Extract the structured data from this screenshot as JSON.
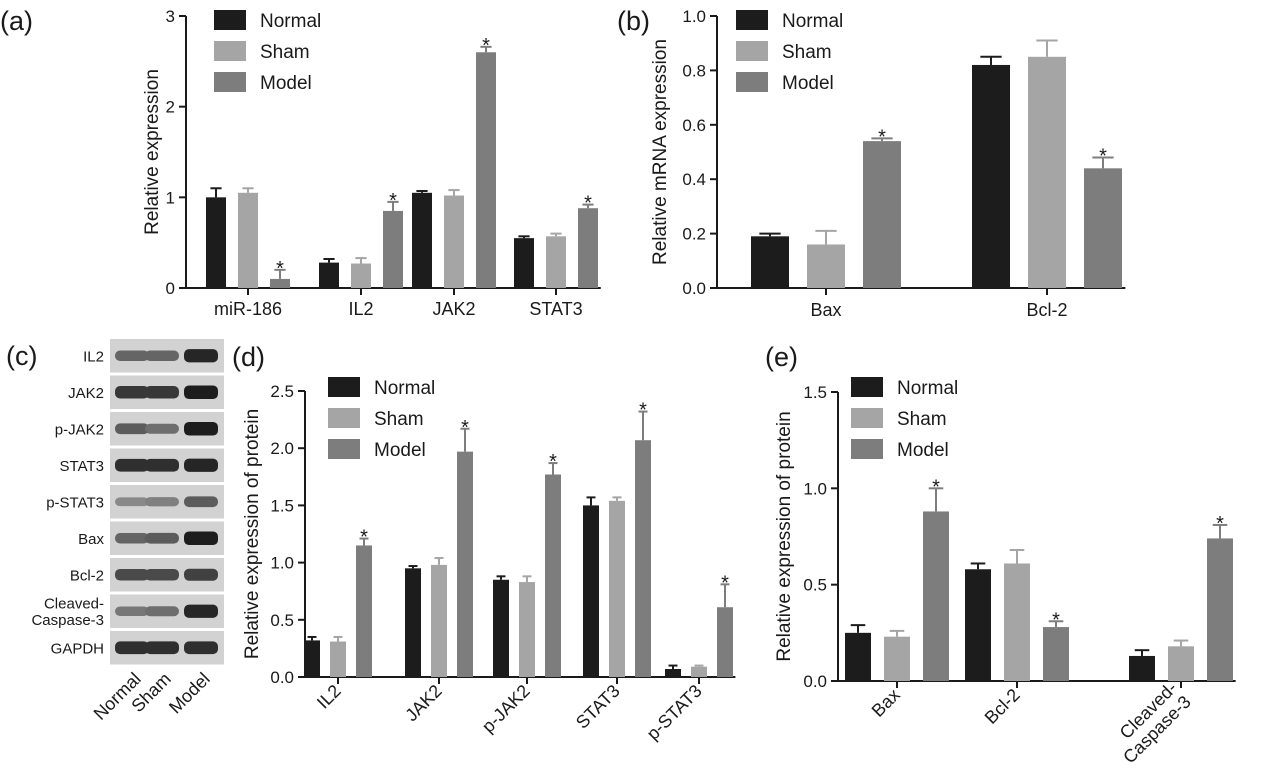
{
  "colors": {
    "Normal": "#1c1c1c",
    "Sham": "#a5a5a5",
    "Model": "#7d7d7d"
  },
  "chart_data": [
    {
      "panel": "(a)",
      "type": "bar",
      "ylabel": "Relative expression",
      "ylim": [
        0,
        3
      ],
      "yticks": [
        "0",
        "1",
        "2",
        "3"
      ],
      "categories": [
        "miR-186",
        "IL2",
        "JAK2",
        "STAT3"
      ],
      "legend": [
        "Normal",
        "Sham",
        "Model"
      ],
      "legend_position": "top-left",
      "series": [
        {
          "name": "Normal",
          "values": [
            1.0,
            0.28,
            1.05,
            0.55
          ],
          "errors": [
            0.1,
            0.04,
            0.02,
            0.02
          ]
        },
        {
          "name": "Sham",
          "values": [
            1.05,
            0.27,
            1.02,
            0.57
          ],
          "errors": [
            0.05,
            0.06,
            0.06,
            0.03
          ]
        },
        {
          "name": "Model",
          "values": [
            0.1,
            0.85,
            2.6,
            0.88
          ],
          "errors": [
            0.1,
            0.1,
            0.06,
            0.04
          ]
        }
      ],
      "significance": [
        [
          false,
          false,
          true
        ],
        [
          false,
          false,
          true
        ],
        [
          false,
          false,
          true
        ],
        [
          false,
          false,
          true
        ]
      ],
      "star": "*"
    },
    {
      "panel": "(b)",
      "type": "bar",
      "ylabel": "Relative mRNA expression",
      "ylim": [
        0,
        1.0
      ],
      "yticks": [
        "0.0",
        "0.2",
        "0.4",
        "0.6",
        "0.8",
        "1.0"
      ],
      "categories": [
        "Bax",
        "Bcl-2"
      ],
      "legend": [
        "Normal",
        "Sham",
        "Model"
      ],
      "legend_position": "top-left",
      "series": [
        {
          "name": "Normal",
          "values": [
            0.19,
            0.82
          ],
          "errors": [
            0.01,
            0.03
          ]
        },
        {
          "name": "Sham",
          "values": [
            0.16,
            0.85
          ],
          "errors": [
            0.05,
            0.06
          ]
        },
        {
          "name": "Model",
          "values": [
            0.54,
            0.44
          ],
          "errors": [
            0.01,
            0.04
          ]
        }
      ],
      "significance": [
        [
          false,
          false,
          true
        ],
        [
          false,
          false,
          true
        ]
      ],
      "star": "*"
    },
    {
      "panel": "(d)",
      "type": "bar",
      "ylabel": "Relative expression of protein",
      "ylim": [
        0,
        2.5
      ],
      "yticks": [
        "0.0",
        "0.5",
        "1.0",
        "1.5",
        "2.0",
        "2.5"
      ],
      "categories": [
        "IL2",
        "JAK2",
        "p-JAK2",
        "STAT3",
        "p-STAT3"
      ],
      "legend": [
        "Normal",
        "Sham",
        "Model"
      ],
      "legend_position": "top-left",
      "series": [
        {
          "name": "Normal",
          "values": [
            0.32,
            0.95,
            0.85,
            1.5,
            0.07
          ],
          "errors": [
            0.03,
            0.02,
            0.03,
            0.07,
            0.03
          ]
        },
        {
          "name": "Sham",
          "values": [
            0.31,
            0.98,
            0.83,
            1.54,
            0.09
          ],
          "errors": [
            0.04,
            0.06,
            0.05,
            0.03,
            0.01
          ]
        },
        {
          "name": "Model",
          "values": [
            1.15,
            1.97,
            1.77,
            2.07,
            0.61
          ],
          "errors": [
            0.06,
            0.2,
            0.1,
            0.25,
            0.2
          ]
        }
      ],
      "significance": [
        [
          false,
          false,
          true
        ],
        [
          false,
          false,
          true
        ],
        [
          false,
          false,
          true
        ],
        [
          false,
          false,
          true
        ],
        [
          false,
          false,
          true
        ]
      ],
      "star": "*"
    },
    {
      "panel": "(e)",
      "type": "bar",
      "ylabel": "Relative expression of protein",
      "ylim": [
        0,
        1.5
      ],
      "yticks": [
        "0.0",
        "0.5",
        "1.0",
        "1.5"
      ],
      "categories": [
        "Bax",
        "Bcl-2",
        "Cleaved-\nCaspase-3"
      ],
      "legend": [
        "Normal",
        "Sham",
        "Model"
      ],
      "legend_position": "top-left",
      "series": [
        {
          "name": "Normal",
          "values": [
            0.25,
            0.58,
            0.13
          ],
          "errors": [
            0.04,
            0.03,
            0.03
          ]
        },
        {
          "name": "Sham",
          "values": [
            0.23,
            0.61,
            0.18
          ],
          "errors": [
            0.03,
            0.07,
            0.03
          ]
        },
        {
          "name": "Model",
          "values": [
            0.88,
            0.28,
            0.74
          ],
          "errors": [
            0.12,
            0.03,
            0.07
          ]
        }
      ],
      "significance": [
        [
          false,
          false,
          true
        ],
        [
          false,
          false,
          true
        ],
        [
          false,
          false,
          true
        ]
      ],
      "star": "*"
    }
  ],
  "blot": {
    "panel": "(c)",
    "labels": [
      "IL2",
      "JAK2",
      "p-JAK2",
      "STAT3",
      "p-STAT3",
      "Bax",
      "Bcl-2",
      "Cleaved-\nCaspase-3",
      "GAPDH"
    ],
    "lanes": [
      "Normal",
      "Sham",
      "Model"
    ],
    "intensity": [
      [
        0.55,
        0.55,
        0.9
      ],
      [
        0.8,
        0.8,
        0.95
      ],
      [
        0.6,
        0.5,
        0.95
      ],
      [
        0.85,
        0.85,
        0.9
      ],
      [
        0.35,
        0.4,
        0.6
      ],
      [
        0.55,
        0.6,
        0.95
      ],
      [
        0.7,
        0.7,
        0.75
      ],
      [
        0.45,
        0.5,
        0.9
      ],
      [
        0.85,
        0.85,
        0.85
      ]
    ]
  }
}
